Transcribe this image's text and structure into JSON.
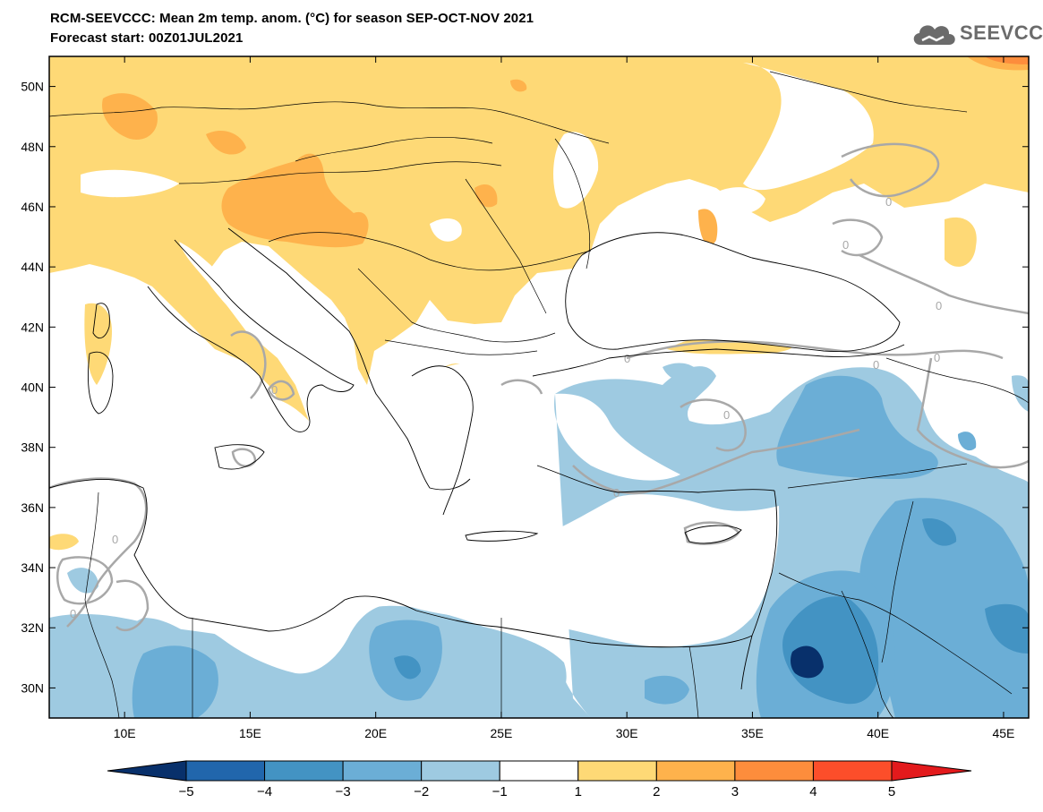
{
  "header": {
    "title": "RCM-SEEVCCC: Mean 2m temp. anom. (°C) for season SEP-OCT-NOV 2021",
    "subtitle": "Forecast start: 00Z01JUL2021"
  },
  "logo": {
    "text": "SEEVCCC",
    "icon": "cloud-icon"
  },
  "map": {
    "lon_range": [
      7,
      46
    ],
    "lat_range": [
      29,
      51
    ],
    "lon_ticks": [
      "10E",
      "15E",
      "20E",
      "25E",
      "30E",
      "35E",
      "40E",
      "45E"
    ],
    "lat_ticks": [
      "50N",
      "48N",
      "46N",
      "44N",
      "42N",
      "40N",
      "38N",
      "36N",
      "34N",
      "32N",
      "30N"
    ],
    "contour_label": "0",
    "zero_contour_color": "#a8a8a8"
  },
  "colorbar": {
    "levels": [
      "−5",
      "−4",
      "−3",
      "−2",
      "−1",
      "1",
      "2",
      "3",
      "4",
      "5"
    ],
    "colors": [
      "#08306b",
      "#2166ac",
      "#4393c3",
      "#6baed6",
      "#9ecae1",
      "#ffffff",
      "#fed976",
      "#feb24c",
      "#fd8d3c",
      "#fc4e2a",
      "#e31a1c"
    ]
  }
}
